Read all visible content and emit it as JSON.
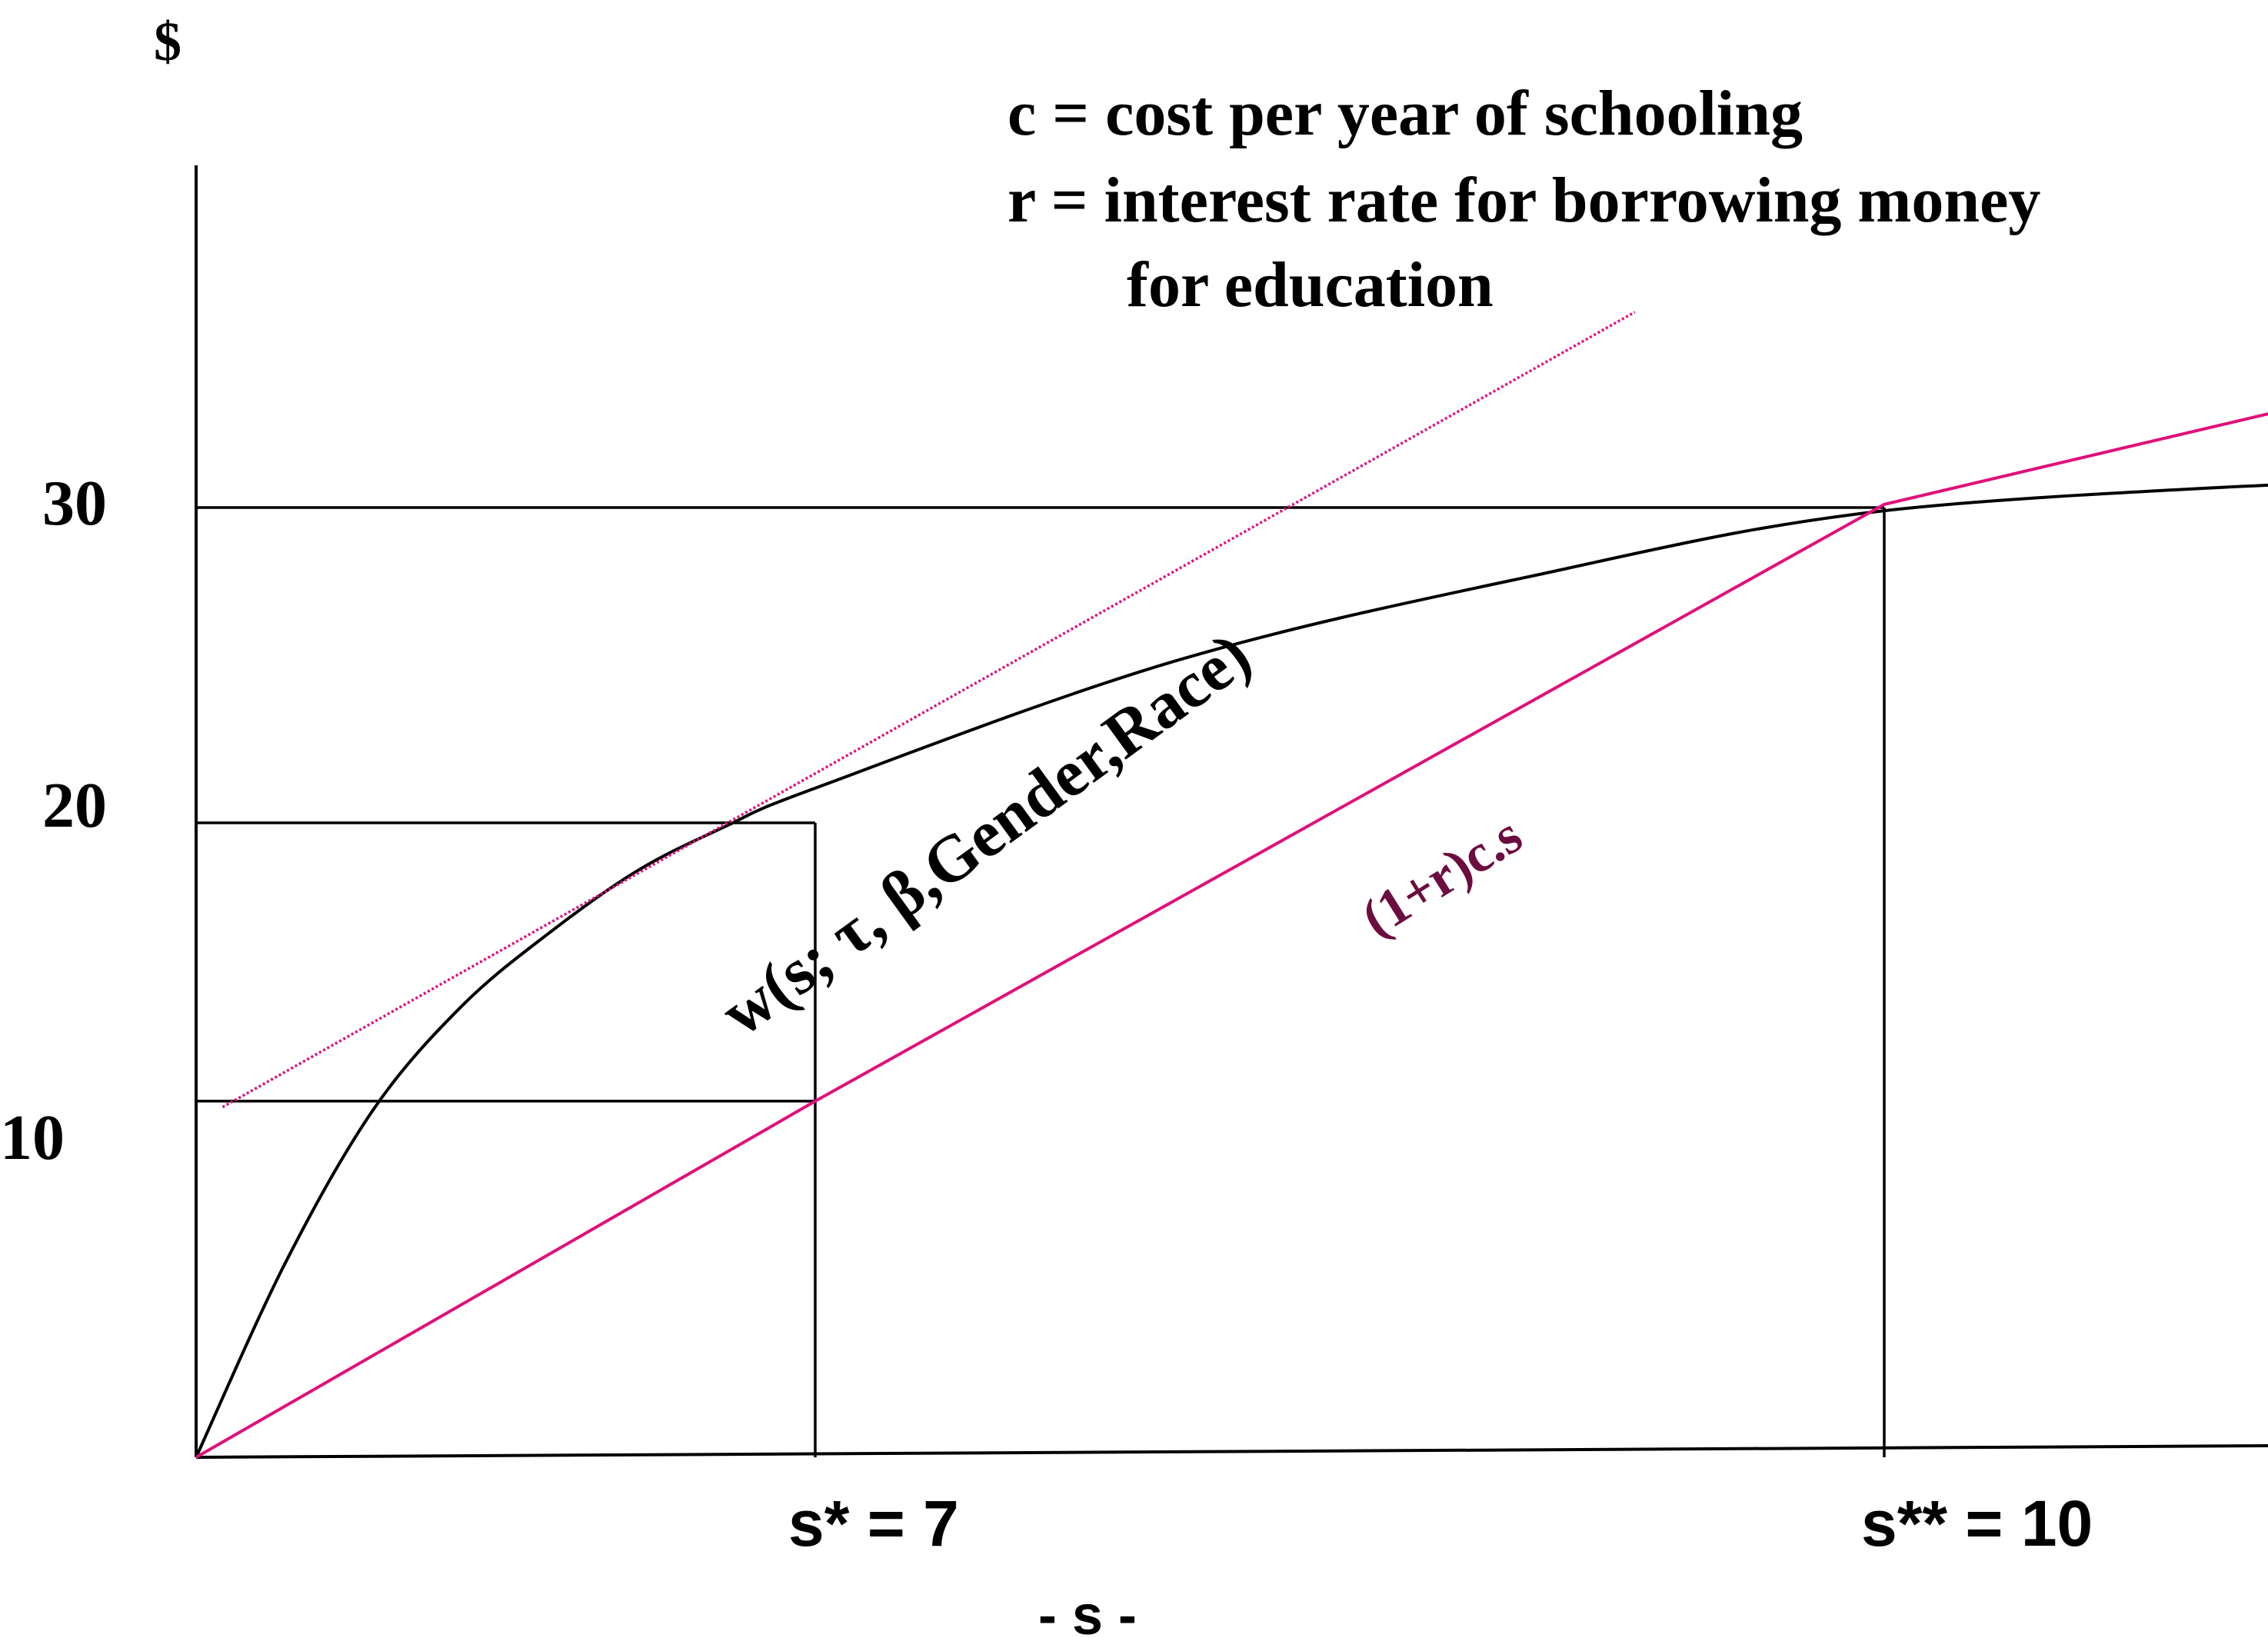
{
  "chart_data": {
    "type": "line",
    "title": "",
    "ylabel": "$",
    "xlabel": "- s -",
    "xlim": [
      0,
      12
    ],
    "ylim": [
      0,
      40
    ],
    "grid": false,
    "y_ticks": [
      {
        "value": 10,
        "label": "10"
      },
      {
        "value": 20,
        "label": "20"
      },
      {
        "value": 30,
        "label": "30"
      }
    ],
    "x_ticks": [
      {
        "value": 7,
        "label": "s* = 7"
      },
      {
        "value": 10,
        "label": "s** = 10"
      }
    ],
    "legend_notes": [
      "c = cost per year of schooling",
      "r = interest rate for borrowing money",
      "for education"
    ],
    "series": [
      {
        "name": "w(s; τ, β,Gender,Race)",
        "color": "#000000",
        "x": [
          0,
          1,
          2,
          3,
          4,
          5,
          6,
          7,
          8,
          9,
          10,
          11.4
        ],
        "y": [
          0,
          5.7,
          10.3,
          13.8,
          16.3,
          18.4,
          19.9,
          21.1,
          25.1,
          27.8,
          29.9,
          30.9
        ]
      },
      {
        "name": "(1+r)c.s",
        "color": "#e0107a",
        "x": [
          0,
          7,
          10,
          11.5
        ],
        "y": [
          0,
          10.6,
          30.1,
          34.1
        ]
      },
      {
        "name": "",
        "color": "#e0107a",
        "style": "dotted",
        "x": [
          0.3,
          9.3
        ],
        "y": [
          10.4,
          36.2
        ]
      }
    ],
    "reference_lines": [
      {
        "orientation": "horizontal",
        "y": 30,
        "from_x": 0,
        "to_x": 10
      },
      {
        "orientation": "horizontal",
        "y": 20,
        "from_x": 0,
        "to_x": 7
      },
      {
        "orientation": "horizontal",
        "y": 10.6,
        "from_x": 0,
        "to_x": 7
      },
      {
        "orientation": "vertical",
        "x": 7,
        "from_y": 0,
        "to_y": 20
      },
      {
        "orientation": "vertical",
        "x": 10,
        "from_y": 0,
        "to_y": 30
      }
    ],
    "colors": {
      "curve": "#000000",
      "cost_line": "#e0107a",
      "cost_label": "#6b0d3f"
    }
  }
}
